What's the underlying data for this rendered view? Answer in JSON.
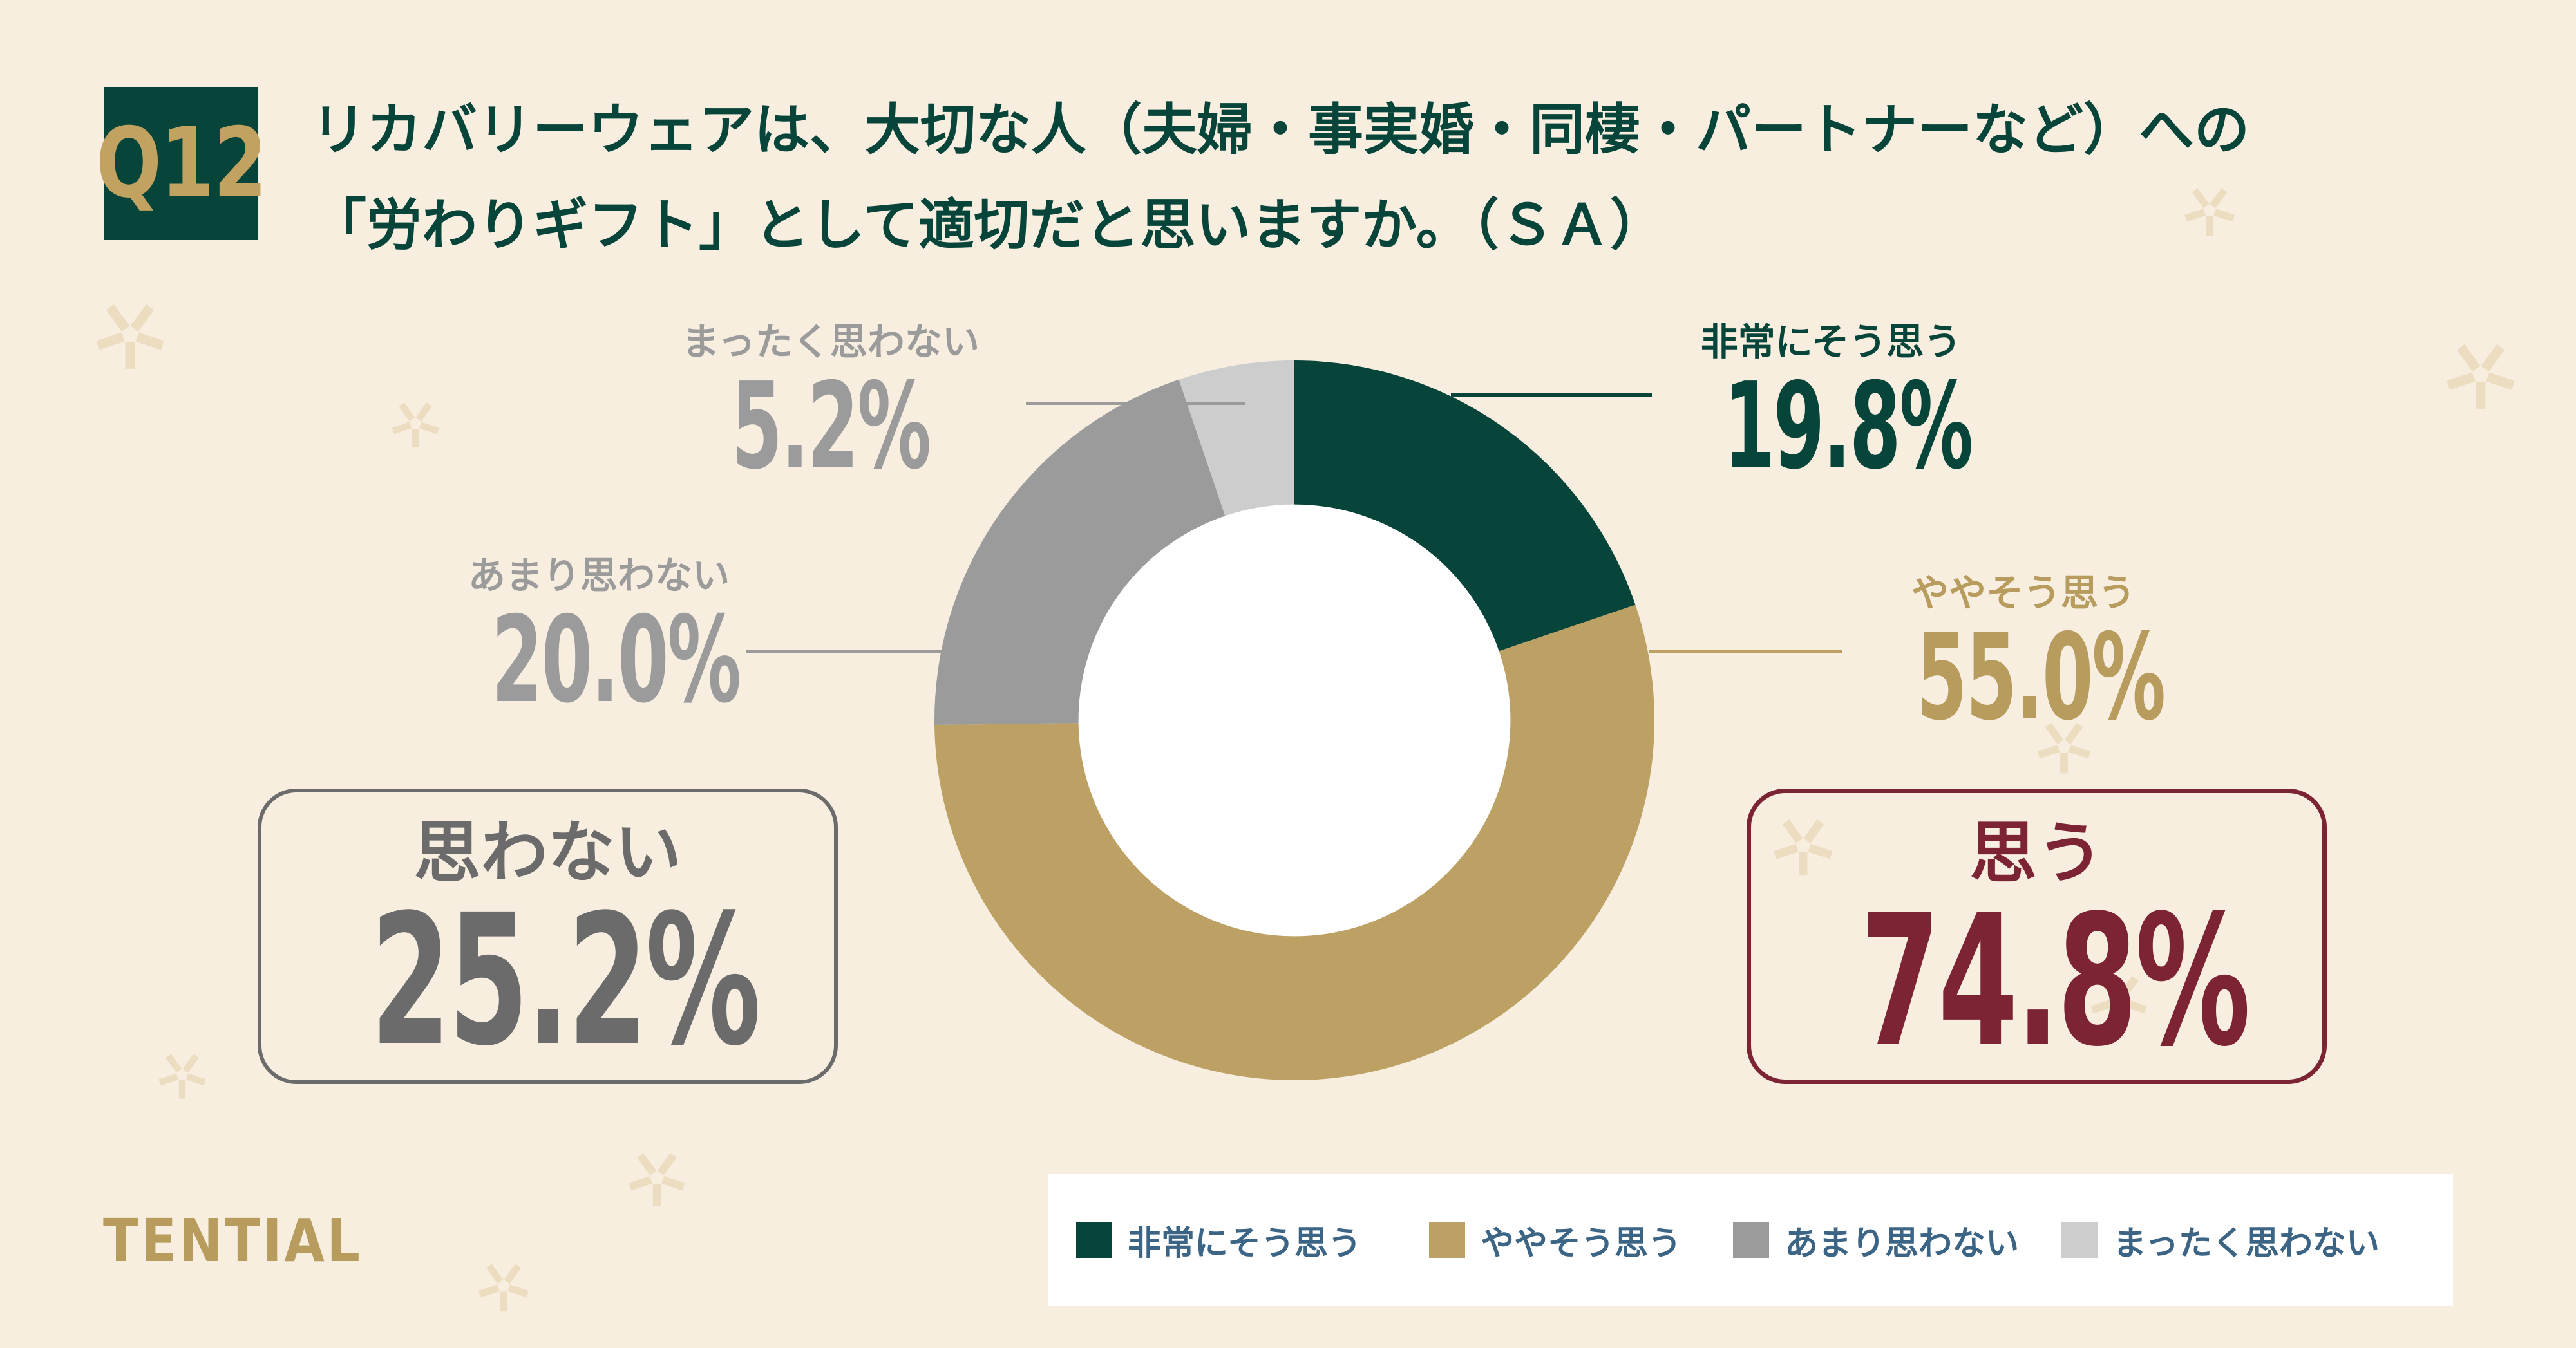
{
  "colors": {
    "background": "#f7eee0",
    "sparkle": "#ecdcc0",
    "dark_green": "#07443a",
    "gold": "#bda164",
    "gold_text": "#b79c5d",
    "gray": "#9b9b9b",
    "light_gray": "#cdcdcd",
    "maroon": "#7c2434",
    "box_gray": "#6b6b6b",
    "legend_text": "#3c6485",
    "white": "#ffffff"
  },
  "header": {
    "question_number": "Q12",
    "title_line1": "リカバリーウェアは、大切な人（夫婦・事実婚・同棲・パートナーなど）への",
    "title_line2": "「労わりギフト」として適切だと思いますか。（ＳＡ）"
  },
  "chart_data": {
    "type": "pie",
    "donut": true,
    "title": "リカバリーウェアは、大切な人（夫婦・事実婚・同棲・パートナーなど）への「労わりギフト」として適切だと思いますか。（ＳＡ）",
    "unit": "%",
    "start": "top, clockwise",
    "inner_radius_ratio": 0.6,
    "legend_position": "bottom",
    "segments": [
      {
        "label": "非常にそう思う",
        "value_pct": 19.8,
        "display": "19.8%",
        "color": "#07443a"
      },
      {
        "label": "ややそう思う",
        "value_pct": 55.0,
        "display": "55.0%",
        "color": "#bda164"
      },
      {
        "label": "あまり思わない",
        "value_pct": 20.0,
        "display": "20.0%",
        "color": "#9b9b9b"
      },
      {
        "label": "まったく思わない",
        "value_pct": 5.2,
        "display": "5.2%",
        "color": "#cdcdcd"
      }
    ],
    "summary": [
      {
        "label": "思わない",
        "value_pct": 25.2,
        "display": "25.2%",
        "color": "#6b6b6b"
      },
      {
        "label": "思う",
        "value_pct": 74.8,
        "display": "74.8%",
        "color": "#7c2434"
      }
    ]
  },
  "footer": {
    "logo": "TENTIAL"
  }
}
